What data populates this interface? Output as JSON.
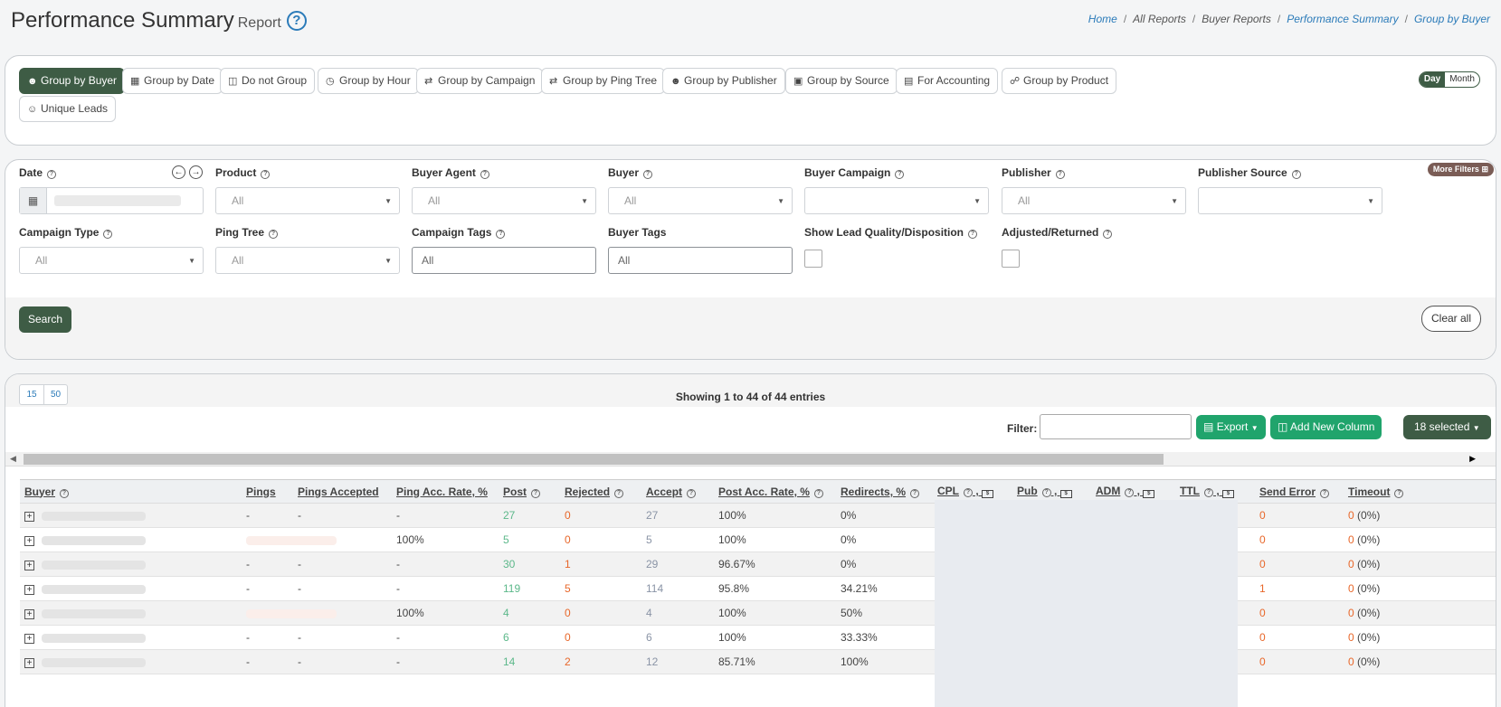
{
  "header": {
    "title": "Performance Summary",
    "subtitle": "Report",
    "help": "?",
    "breadcrumb": [
      "Home",
      "All Reports",
      "Buyer Reports",
      "Performance Summary",
      "Group by Buyer"
    ],
    "breadcrumb_sep": "/"
  },
  "grouping": {
    "buttons": [
      {
        "label": "Group by Buyer",
        "icon": "user-icon",
        "active": true
      },
      {
        "label": "Group by Date",
        "icon": "calendar-icon"
      },
      {
        "label": "Do not Group",
        "icon": "truck-icon"
      },
      {
        "label": "Group by Hour",
        "icon": "clock-icon"
      },
      {
        "label": "Group by Campaign",
        "icon": "shuffle-icon"
      },
      {
        "label": "Group by Ping Tree",
        "icon": "shuffle-icon"
      },
      {
        "label": "Group by Publisher",
        "icon": "users-icon"
      },
      {
        "label": "Group by Source",
        "icon": "box-icon"
      },
      {
        "label": "For Accounting",
        "icon": "card-icon"
      },
      {
        "label": "Group by Product",
        "icon": "cart-icon"
      },
      {
        "label": "Unique Leads",
        "icon": "user-circle-icon"
      }
    ],
    "period": {
      "day": "Day",
      "month": "Month",
      "selected": "Day"
    }
  },
  "filters": {
    "more_filters": "More Filters",
    "date": {
      "label": "Date"
    },
    "product": {
      "label": "Product",
      "value": "All"
    },
    "buyer_agent": {
      "label": "Buyer Agent",
      "value": "All"
    },
    "buyer": {
      "label": "Buyer",
      "value": "All"
    },
    "buyer_campaign": {
      "label": "Buyer Campaign",
      "value": ""
    },
    "publisher": {
      "label": "Publisher",
      "value": "All"
    },
    "publisher_source": {
      "label": "Publisher Source",
      "value": ""
    },
    "campaign_type": {
      "label": "Campaign Type",
      "value": "All"
    },
    "ping_tree": {
      "label": "Ping Tree",
      "value": "All"
    },
    "campaign_tags": {
      "label": "Campaign Tags",
      "value": "All"
    },
    "buyer_tags": {
      "label": "Buyer Tags",
      "value": "All"
    },
    "show_lead_quality": {
      "label": "Show Lead Quality/Disposition",
      "checked": false
    },
    "adjusted_returned": {
      "label": "Adjusted/Returned",
      "checked": false
    },
    "search_label": "Search",
    "clear_label": "Clear all"
  },
  "results": {
    "page_sizes": [
      "15",
      "50"
    ],
    "showing": "Showing 1 to 44 of 44 entries",
    "filter_label": "Filter:",
    "filter_value": "",
    "export_label": "Export",
    "add_column_label": "Add New Column",
    "selected_label": "18 selected"
  },
  "table": {
    "columns": [
      "Buyer",
      "Pings",
      "Pings Accepted",
      "Ping Acc. Rate, %",
      "Post",
      "Rejected",
      "Accept",
      "Post Acc. Rate, %",
      "Redirects, %",
      "CPL",
      "Pub",
      "ADM",
      "TTL",
      "Send Error",
      "Timeout"
    ],
    "rows": [
      {
        "pings": "-",
        "pings_acc": "-",
        "ping_rate": "-",
        "post": "27",
        "rejected": "0",
        "accept": "27",
        "post_rate": "100%",
        "redirects": "0%",
        "send_error": "0",
        "timeout": "0",
        "timeout_pct": "(0%)"
      },
      {
        "pings": "",
        "pings_acc": "",
        "ping_rate": "100%",
        "post": "5",
        "rejected": "0",
        "accept": "5",
        "post_rate": "100%",
        "redirects": "0%",
        "send_error": "0",
        "timeout": "0",
        "timeout_pct": "(0%)"
      },
      {
        "pings": "-",
        "pings_acc": "-",
        "ping_rate": "-",
        "post": "30",
        "rejected": "1",
        "accept": "29",
        "post_rate": "96.67%",
        "redirects": "0%",
        "send_error": "0",
        "timeout": "0",
        "timeout_pct": "(0%)"
      },
      {
        "pings": "-",
        "pings_acc": "-",
        "ping_rate": "-",
        "post": "119",
        "rejected": "5",
        "accept": "114",
        "post_rate": "95.8%",
        "redirects": "34.21%",
        "send_error": "1",
        "timeout": "0",
        "timeout_pct": "(0%)"
      },
      {
        "pings": "",
        "pings_acc": "",
        "ping_rate": "100%",
        "post": "4",
        "rejected": "0",
        "accept": "4",
        "post_rate": "100%",
        "redirects": "50%",
        "send_error": "0",
        "timeout": "0",
        "timeout_pct": "(0%)"
      },
      {
        "pings": "-",
        "pings_acc": "-",
        "ping_rate": "-",
        "post": "6",
        "rejected": "0",
        "accept": "6",
        "post_rate": "100%",
        "redirects": "33.33%",
        "send_error": "0",
        "timeout": "0",
        "timeout_pct": "(0%)"
      },
      {
        "pings": "-",
        "pings_acc": "-",
        "ping_rate": "-",
        "post": "14",
        "rejected": "2",
        "accept": "12",
        "post_rate": "85.71%",
        "redirects": "100%",
        "send_error": "0",
        "timeout": "0",
        "timeout_pct": "(0%)"
      }
    ]
  },
  "colors": {
    "primary_dark": "#3e5c45",
    "export_green": "#20a46c",
    "link_blue": "#2b7bb9",
    "post_green": "#5cb88a",
    "reject_orange": "#e8672a"
  }
}
